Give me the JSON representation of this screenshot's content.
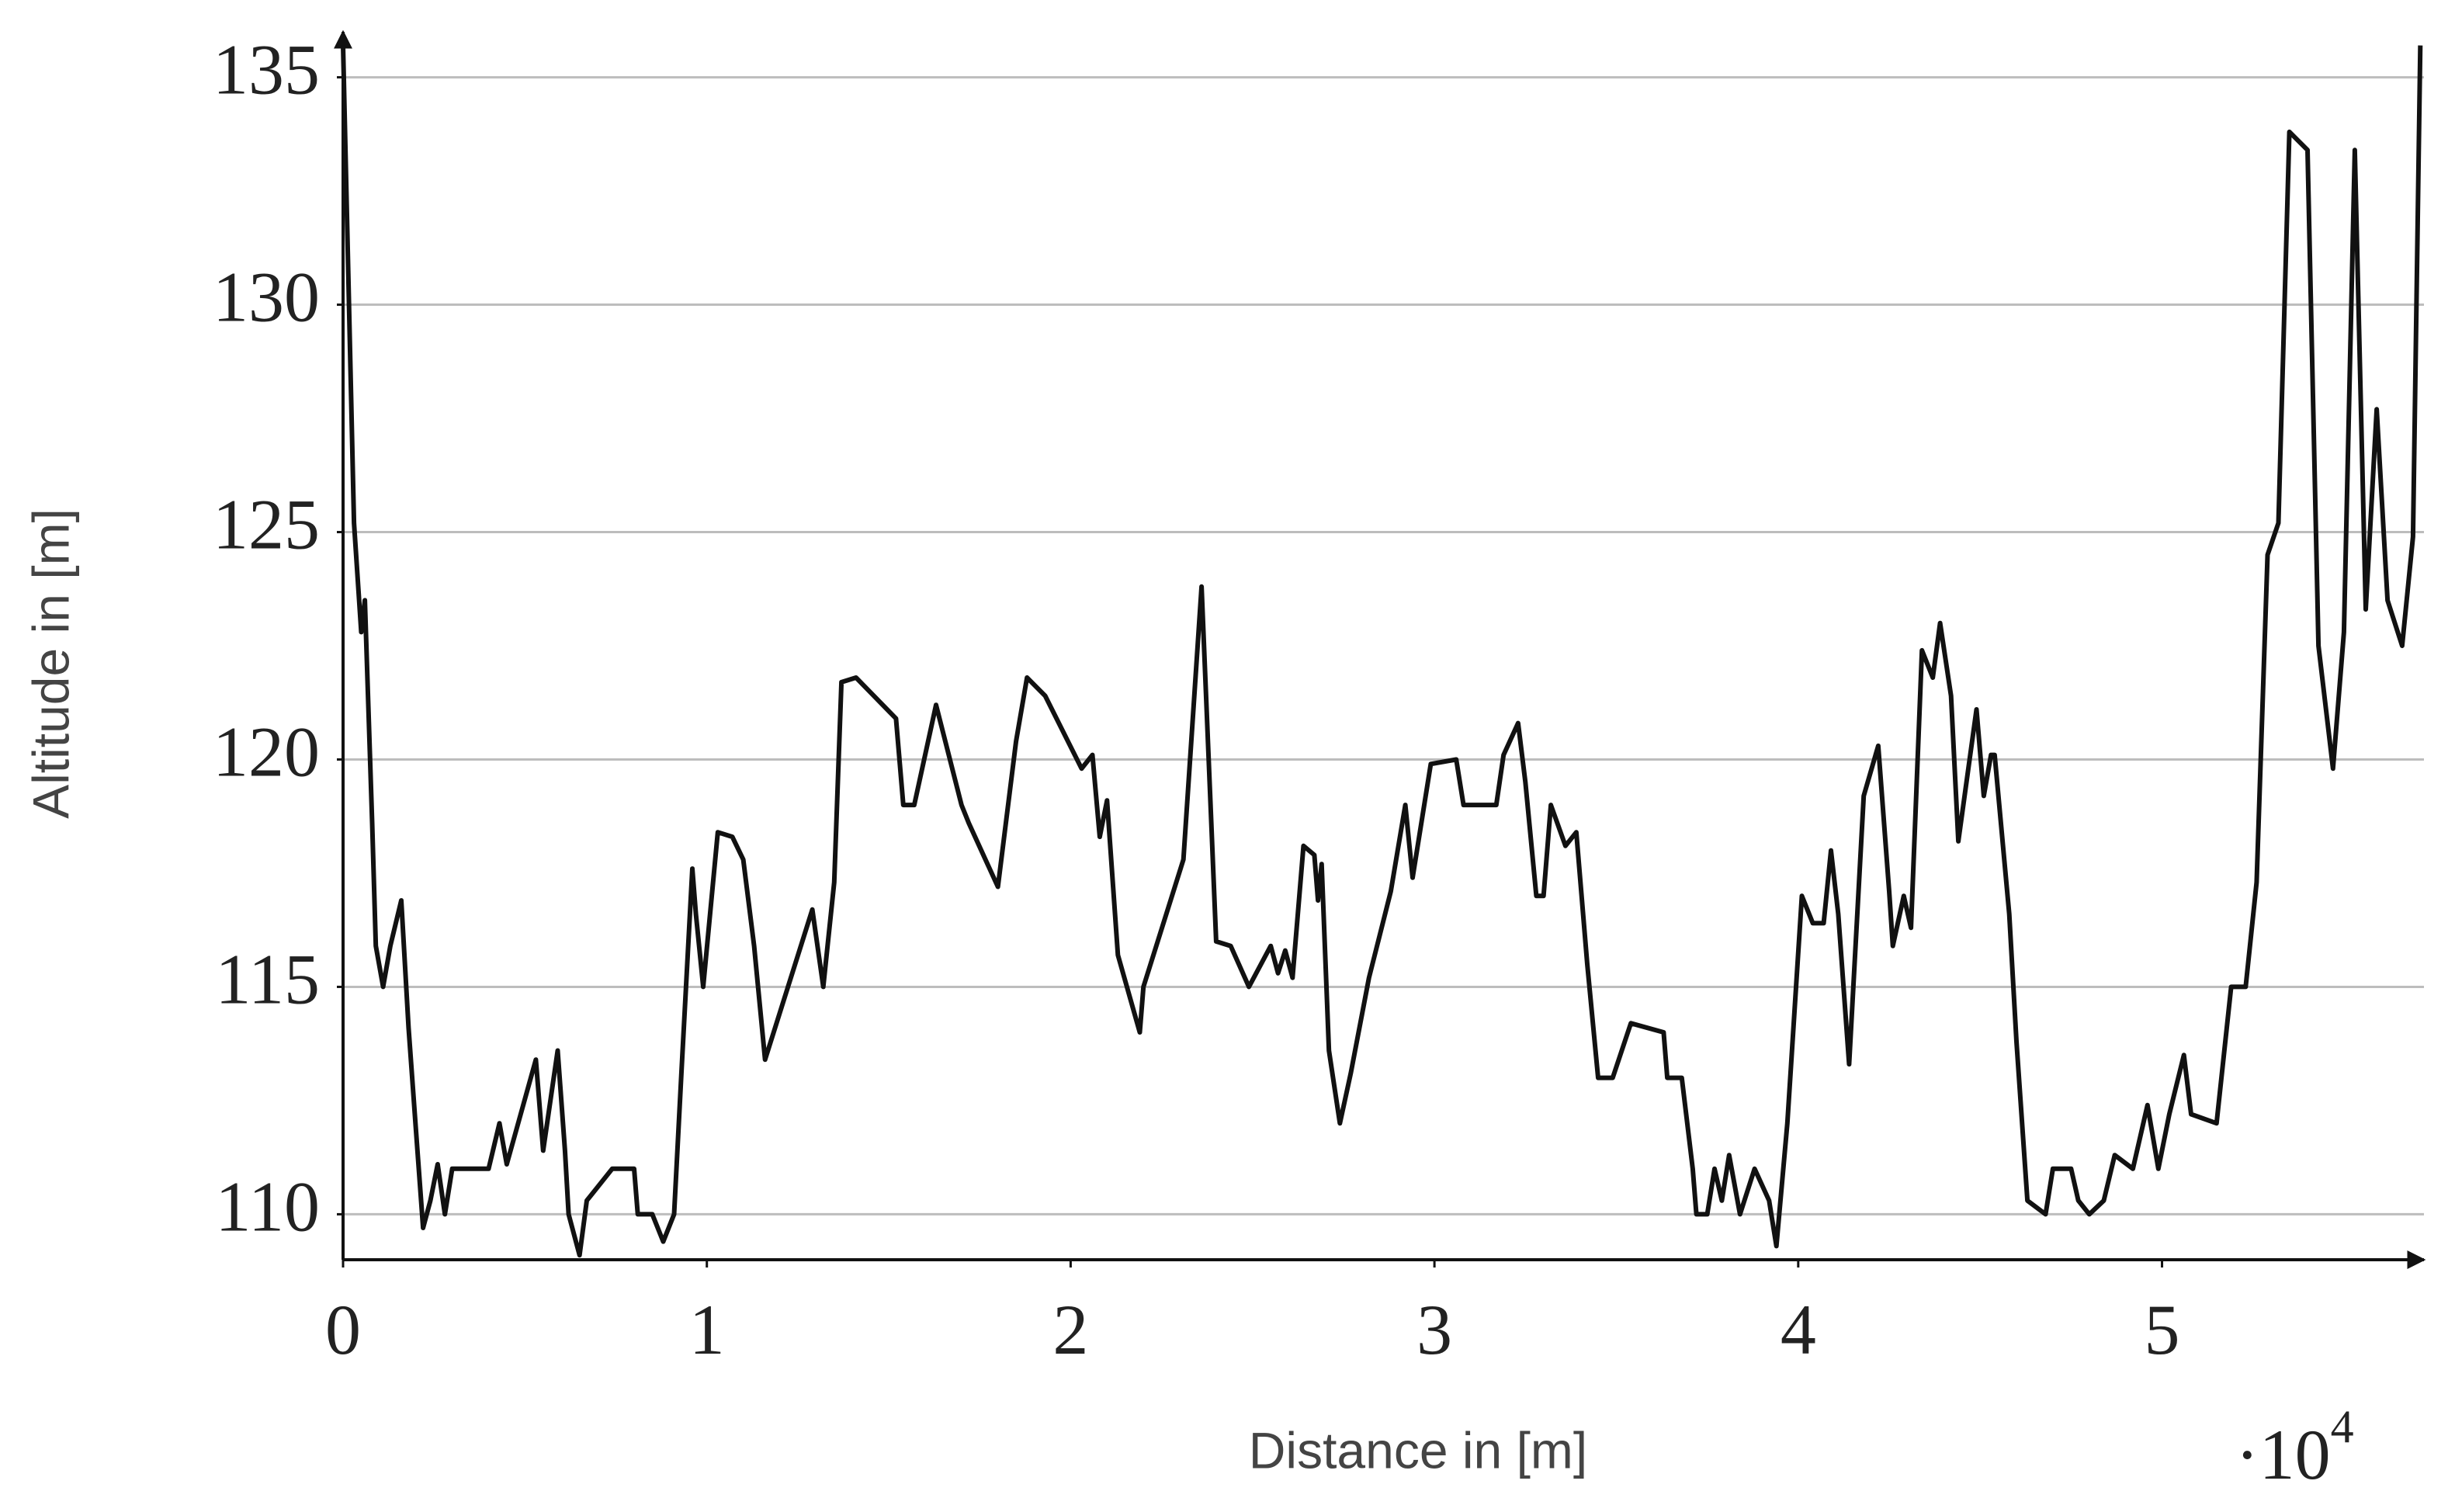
{
  "chart_data": {
    "type": "line",
    "x_label": "Distance in [m]",
    "y_label": "Altitude in [m]",
    "x_multiplier_base": "·10",
    "x_multiplier_exponent": "4",
    "xlim": [
      0,
      5.72
    ],
    "xticks": [
      0,
      1,
      2,
      3,
      4,
      5
    ],
    "ylim": [
      109,
      136
    ],
    "yticks": [
      110,
      115,
      120,
      125,
      130,
      135
    ],
    "grid": true,
    "series": [
      {
        "color": "#111111",
        "x": [
          0,
          0.01,
          0.03,
          0.05,
          0.06,
          0.08,
          0.09,
          0.11,
          0.13,
          0.16,
          0.18,
          0.2,
          0.22,
          0.24,
          0.26,
          0.28,
          0.3,
          0.4,
          0.43,
          0.45,
          0.53,
          0.55,
          0.59,
          0.61,
          0.62,
          0.65,
          0.67,
          0.74,
          0.8,
          0.81,
          0.85,
          0.88,
          0.91,
          0.93,
          0.96,
          0.97,
          0.99,
          1.01,
          1.03,
          1.07,
          1.1,
          1.13,
          1.16,
          1.29,
          1.32,
          1.35,
          1.37,
          1.41,
          1.52,
          1.54,
          1.57,
          1.63,
          1.7,
          1.72,
          1.8,
          1.85,
          1.88,
          1.93,
          2.03,
          2.06,
          2.08,
          2.1,
          2.13,
          2.19,
          2.2,
          2.31,
          2.36,
          2.4,
          2.44,
          2.49,
          2.55,
          2.57,
          2.59,
          2.61,
          2.64,
          2.67,
          2.68,
          2.69,
          2.71,
          2.74,
          2.77,
          2.82,
          2.88,
          2.92,
          2.94,
          2.99,
          3.06,
          3.08,
          3.17,
          3.19,
          3.23,
          3.25,
          3.28,
          3.3,
          3.32,
          3.36,
          3.39,
          3.42,
          3.45,
          3.49,
          3.54,
          3.63,
          3.64,
          3.68,
          3.71,
          3.72,
          3.75,
          3.77,
          3.79,
          3.81,
          3.84,
          3.88,
          3.92,
          3.94,
          3.97,
          4.01,
          4.04,
          4.07,
          4.09,
          4.11,
          4.14,
          4.18,
          4.22,
          4.25,
          4.26,
          4.29,
          4.31,
          4.34,
          4.37,
          4.39,
          4.42,
          4.44,
          4.49,
          4.51,
          4.53,
          4.54,
          4.58,
          4.6,
          4.63,
          4.68,
          4.7,
          4.75,
          4.77,
          4.8,
          4.84,
          4.87,
          4.92,
          4.96,
          4.99,
          5.02,
          5.06,
          5.08,
          5.15,
          5.19,
          5.23,
          5.26,
          5.29,
          5.32,
          5.35,
          5.4,
          5.43,
          5.47,
          5.5,
          5.53,
          5.56,
          5.59,
          5.62,
          5.66,
          5.69,
          5.71
        ],
        "values": [
          135.7,
          132.2,
          125.2,
          122.8,
          123.5,
          118.6,
          115.9,
          115,
          115.9,
          116.9,
          114.1,
          111.9,
          109.7,
          110.3,
          111.1,
          110,
          111,
          111,
          112,
          111.1,
          113.4,
          111.4,
          113.6,
          111.4,
          110,
          109.1,
          110.3,
          111,
          111,
          110,
          110,
          109.4,
          110,
          113.1,
          117.6,
          116.6,
          115,
          116.7,
          118.4,
          118.3,
          117.8,
          115.9,
          113.4,
          116.7,
          115,
          117.3,
          121.7,
          121.8,
          120.9,
          119,
          119,
          121.2,
          119,
          118.6,
          117.2,
          120.4,
          121.8,
          121.4,
          119.8,
          120.1,
          118.3,
          119.1,
          115.7,
          114,
          115,
          117.8,
          123.8,
          116,
          115.9,
          115,
          115.9,
          115.3,
          115.8,
          115.2,
          118.1,
          117.9,
          116.9,
          117.7,
          113.6,
          112,
          113.1,
          115.2,
          117.1,
          119,
          117.4,
          119.9,
          120,
          119,
          119,
          120.1,
          120.8,
          119.5,
          117,
          117,
          119,
          118.1,
          118.4,
          115.5,
          113,
          113,
          114.2,
          114,
          113,
          113,
          111,
          110,
          110,
          111,
          110.3,
          111.3,
          110,
          111,
          110.3,
          109.3,
          112,
          117,
          116.4,
          116.4,
          118,
          116.6,
          113.3,
          119.2,
          120.3,
          117.1,
          115.9,
          117,
          116.3,
          122.4,
          121.8,
          123,
          121.4,
          118.2,
          121.1,
          119.2,
          120.1,
          120.1,
          116.6,
          113.8,
          110.3,
          110,
          111,
          111,
          110.3,
          110,
          110.3,
          111.3,
          111,
          112.4,
          111,
          112.2,
          113.5,
          112.2,
          112,
          115,
          115,
          117.3,
          124.5,
          125.2,
          133.8,
          133.4,
          122.5,
          119.8,
          122.8,
          133.4,
          123.3,
          127.7,
          123.5,
          122.5,
          124.9,
          135.7
        ]
      }
    ]
  }
}
